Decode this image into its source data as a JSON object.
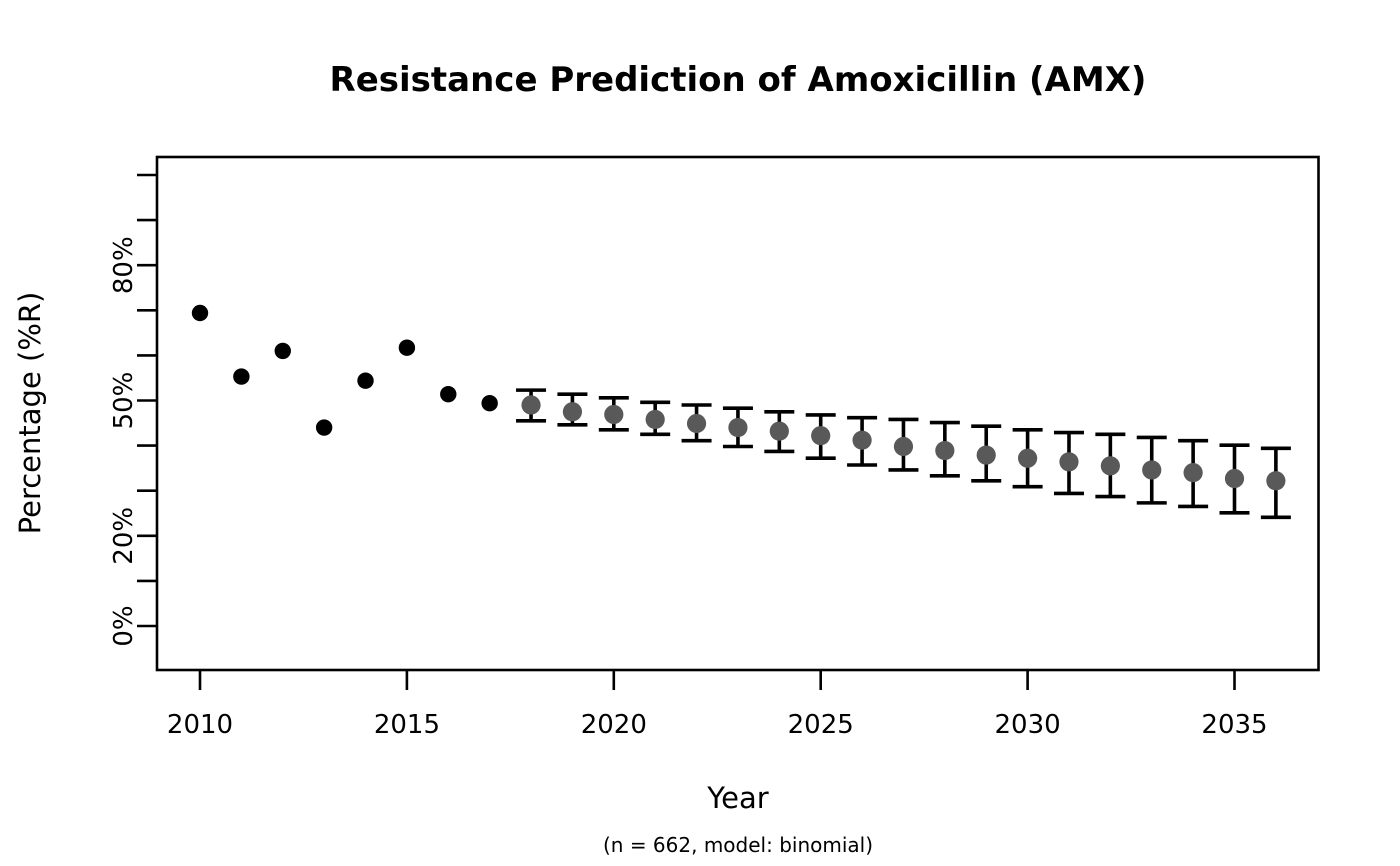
{
  "title": "Resistance Prediction of Amoxicillin (AMX)",
  "chart_data": {
    "type": "scatter",
    "title": "Resistance Prediction of Amoxicillin (AMX)",
    "xlabel": "Year",
    "xlabel_subtitle": "(n = 662, model: binomial)",
    "ylabel": "Percentage (%R)",
    "x_ticks": [
      2010,
      2015,
      2020,
      2025,
      2030,
      2035
    ],
    "y_tick_values": [
      0,
      10,
      20,
      30,
      40,
      50,
      60,
      70,
      80,
      90,
      100
    ],
    "y_tick_labels": [
      {
        "value": 0,
        "label": "0%"
      },
      {
        "value": 20,
        "label": "20%"
      },
      {
        "value": 50,
        "label": "50%"
      },
      {
        "value": 80,
        "label": "80%"
      }
    ],
    "xlim": [
      2008.96,
      2037.04
    ],
    "ylim_percent": [
      -9.8,
      104
    ],
    "grid": false,
    "legend": "none",
    "colors": {
      "observed": "#000000",
      "predicted": "#595959",
      "error_bar": "#000000",
      "axis": "#000000"
    },
    "series": [
      {
        "name": "observed",
        "style": "filled-dot",
        "points": [
          {
            "year": 2010,
            "value": 69.4
          },
          {
            "year": 2011,
            "value": 55.3
          },
          {
            "year": 2012,
            "value": 61.0
          },
          {
            "year": 2013,
            "value": 44.0
          },
          {
            "year": 2014,
            "value": 54.4
          },
          {
            "year": 2015,
            "value": 61.7
          },
          {
            "year": 2016,
            "value": 51.4
          },
          {
            "year": 2017,
            "value": 49.4
          }
        ]
      },
      {
        "name": "predicted",
        "style": "dot-with-error-bar",
        "points": [
          {
            "year": 2018,
            "value": 49.0,
            "lo": 45.5,
            "hi": 52.3
          },
          {
            "year": 2019,
            "value": 47.5,
            "lo": 44.6,
            "hi": 51.4
          },
          {
            "year": 2020,
            "value": 46.9,
            "lo": 43.5,
            "hi": 50.6
          },
          {
            "year": 2021,
            "value": 45.8,
            "lo": 42.5,
            "hi": 49.6
          },
          {
            "year": 2022,
            "value": 44.9,
            "lo": 41.1,
            "hi": 49.0
          },
          {
            "year": 2023,
            "value": 44.0,
            "lo": 39.8,
            "hi": 48.3
          },
          {
            "year": 2024,
            "value": 43.2,
            "lo": 38.7,
            "hi": 47.5
          },
          {
            "year": 2025,
            "value": 42.2,
            "lo": 37.2,
            "hi": 46.8
          },
          {
            "year": 2026,
            "value": 41.2,
            "lo": 35.7,
            "hi": 46.2
          },
          {
            "year": 2027,
            "value": 39.8,
            "lo": 34.6,
            "hi": 45.8
          },
          {
            "year": 2028,
            "value": 38.9,
            "lo": 33.3,
            "hi": 45.1
          },
          {
            "year": 2029,
            "value": 37.9,
            "lo": 32.2,
            "hi": 44.3
          },
          {
            "year": 2030,
            "value": 37.2,
            "lo": 30.9,
            "hi": 43.5
          },
          {
            "year": 2031,
            "value": 36.4,
            "lo": 29.4,
            "hi": 42.9
          },
          {
            "year": 2032,
            "value": 35.5,
            "lo": 28.7,
            "hi": 42.5
          },
          {
            "year": 2033,
            "value": 34.6,
            "lo": 27.3,
            "hi": 41.8
          },
          {
            "year": 2034,
            "value": 34.0,
            "lo": 26.5,
            "hi": 41.1
          },
          {
            "year": 2035,
            "value": 32.7,
            "lo": 25.1,
            "hi": 40.1
          },
          {
            "year": 2036,
            "value": 32.2,
            "lo": 24.1,
            "hi": 39.4
          }
        ]
      }
    ]
  }
}
